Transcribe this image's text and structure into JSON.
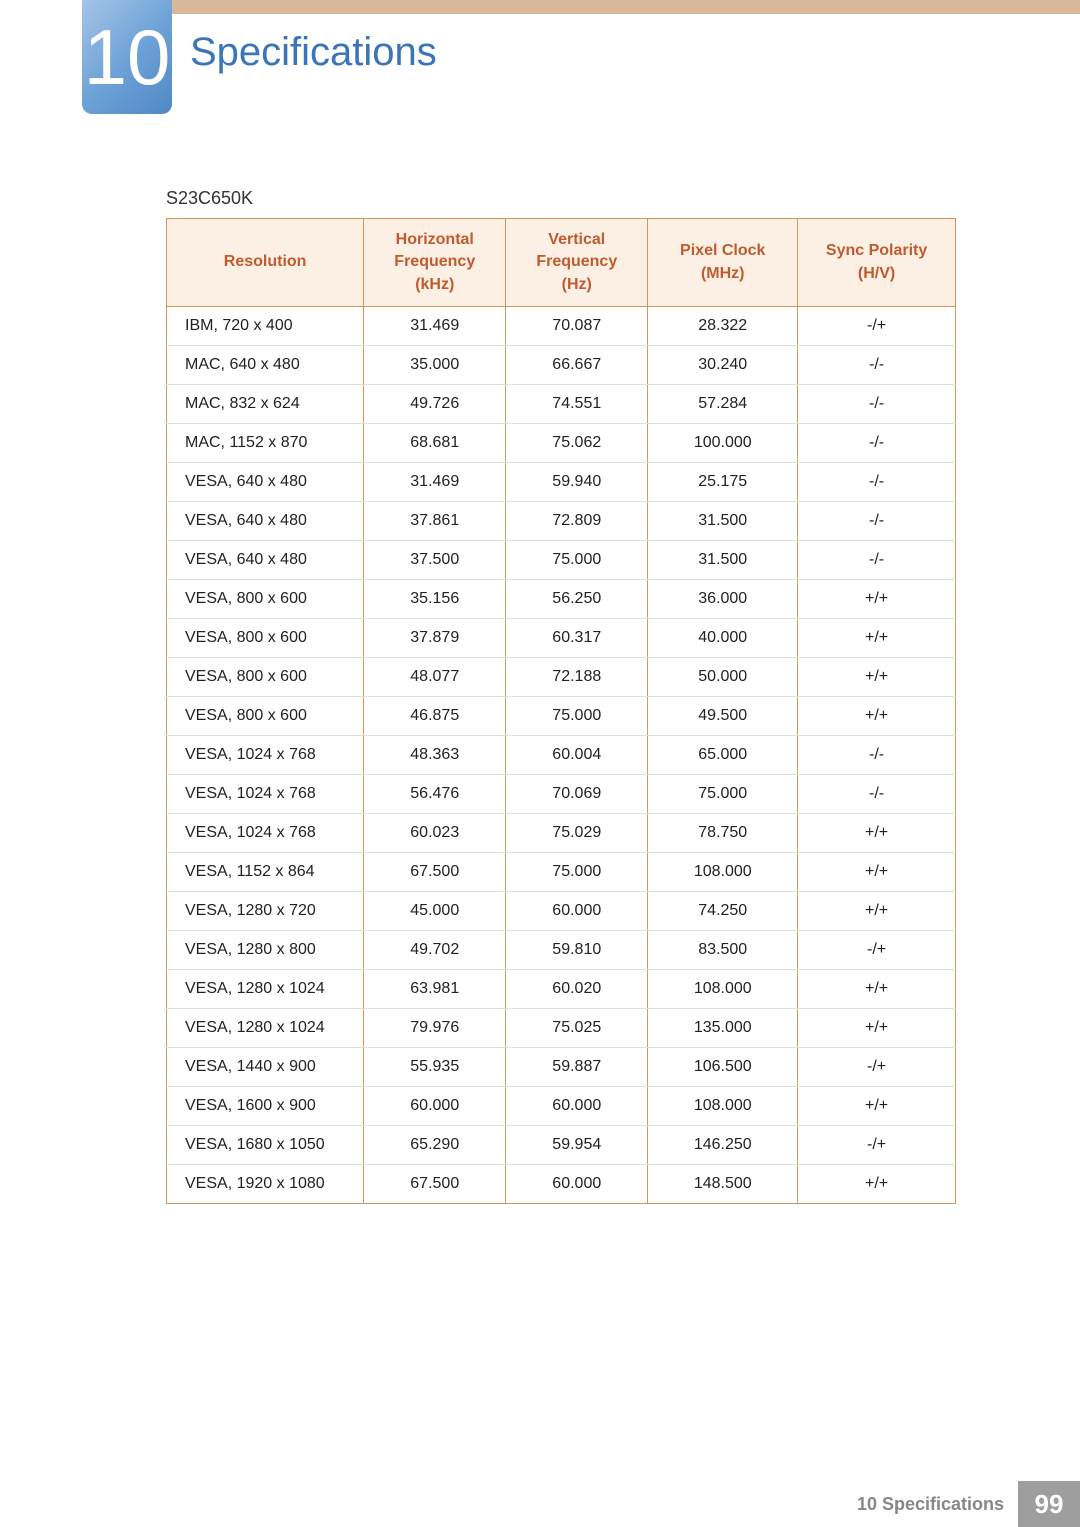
{
  "chapter": {
    "number": "10",
    "title": "Specifications"
  },
  "model": "S23C650K",
  "table": {
    "columns": [
      {
        "l1": "Resolution",
        "l2": "",
        "l3": ""
      },
      {
        "l1": "Horizontal",
        "l2": "Frequency",
        "l3": "(kHz)"
      },
      {
        "l1": "Vertical",
        "l2": "Frequency",
        "l3": "(Hz)"
      },
      {
        "l1": "Pixel Clock",
        "l2": "(MHz)",
        "l3": ""
      },
      {
        "l1": "Sync Polarity",
        "l2": "(H/V)",
        "l3": ""
      }
    ],
    "rows": [
      [
        "IBM, 720 x 400",
        "31.469",
        "70.087",
        "28.322",
        "-/+"
      ],
      [
        "MAC, 640 x 480",
        "35.000",
        "66.667",
        "30.240",
        "-/-"
      ],
      [
        "MAC, 832 x 624",
        "49.726",
        "74.551",
        "57.284",
        "-/-"
      ],
      [
        "MAC, 1152 x 870",
        "68.681",
        "75.062",
        "100.000",
        "-/-"
      ],
      [
        "VESA, 640 x 480",
        "31.469",
        "59.940",
        "25.175",
        "-/-"
      ],
      [
        "VESA, 640 x 480",
        "37.861",
        "72.809",
        "31.500",
        "-/-"
      ],
      [
        "VESA, 640 x 480",
        "37.500",
        "75.000",
        "31.500",
        "-/-"
      ],
      [
        "VESA, 800 x 600",
        "35.156",
        "56.250",
        "36.000",
        "+/+"
      ],
      [
        "VESA, 800 x 600",
        "37.879",
        "60.317",
        "40.000",
        "+/+"
      ],
      [
        "VESA, 800 x 600",
        "48.077",
        "72.188",
        "50.000",
        "+/+"
      ],
      [
        "VESA, 800 x 600",
        "46.875",
        "75.000",
        "49.500",
        "+/+"
      ],
      [
        "VESA, 1024 x 768",
        "48.363",
        "60.004",
        "65.000",
        "-/-"
      ],
      [
        "VESA, 1024 x 768",
        "56.476",
        "70.069",
        "75.000",
        "-/-"
      ],
      [
        "VESA, 1024 x 768",
        "60.023",
        "75.029",
        "78.750",
        "+/+"
      ],
      [
        "VESA, 1152 x 864",
        "67.500",
        "75.000",
        "108.000",
        "+/+"
      ],
      [
        "VESA, 1280 x 720",
        "45.000",
        "60.000",
        "74.250",
        "+/+"
      ],
      [
        "VESA, 1280 x 800",
        "49.702",
        "59.810",
        "83.500",
        "-/+"
      ],
      [
        "VESA, 1280 x 1024",
        "63.981",
        "60.020",
        "108.000",
        "+/+"
      ],
      [
        "VESA, 1280 x 1024",
        "79.976",
        "75.025",
        "135.000",
        "+/+"
      ],
      [
        "VESA, 1440 x 900",
        "55.935",
        "59.887",
        "106.500",
        "-/+"
      ],
      [
        "VESA, 1600 x 900",
        "60.000",
        "60.000",
        "108.000",
        "+/+"
      ],
      [
        "VESA, 1680 x 1050",
        "65.290",
        "59.954",
        "146.250",
        "-/+"
      ],
      [
        "VESA, 1920 x 1080",
        "67.500",
        "60.000",
        "148.500",
        "+/+"
      ]
    ]
  },
  "footer": {
    "label": "10 Specifications",
    "page": "99"
  },
  "colors": {
    "accent_blue": "#3b74b8",
    "header_bg": "#fcefe4",
    "header_text": "#bf5b2e",
    "border": "#d0975c",
    "top_bar": "#d9b799",
    "footer_page_bg": "#9e9e9e"
  }
}
